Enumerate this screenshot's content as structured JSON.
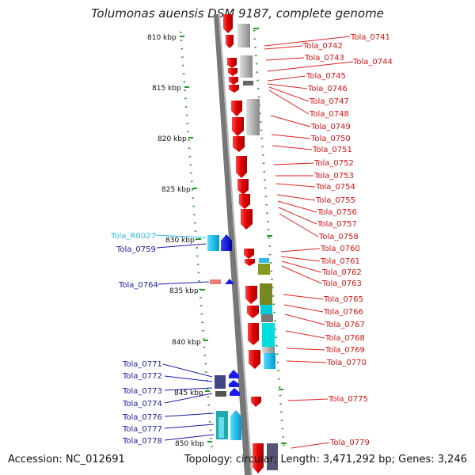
{
  "title": "Tolumonas auensis DSM 9187, complete genome",
  "accession": "Accession: NC_012691",
  "stats": "Topology: circular; Length: 3,471,292 bp; Genes: 3,246",
  "kbp_ticks": [
    {
      "label": "810 kbp",
      "kb": 810
    },
    {
      "label": "815 kbp",
      "kb": 815
    },
    {
      "label": "820 kbp",
      "kb": 820
    },
    {
      "label": "825 kbp",
      "kb": 825
    },
    {
      "label": "830 kbp",
      "kb": 830
    },
    {
      "label": "835 kbp",
      "kb": 835
    },
    {
      "label": "840 kbp",
      "kb": 840
    },
    {
      "label": "845 kbp",
      "kb": 845
    },
    {
      "label": "850 kbp",
      "kb": 850
    }
  ],
  "right_labels": [
    "Tola_0741",
    "Tola_0742",
    "Tola_0743",
    "Tola_0744",
    "Tola_0745",
    "Tola_0746",
    "Tola_0747",
    "Tola_0748",
    "Tola_0749",
    "Tola_0750",
    "Tola_0751",
    "Tola_0752",
    "Tola_0753",
    "Tola_0754",
    "Tola_0755",
    "Tola_0756",
    "Tola_0757",
    "Tola_0758",
    "Tola_0760",
    "Tola_0761",
    "Tola_0762",
    "Tola_0763",
    "Tola_0765",
    "Tola_0766",
    "Tola_0767",
    "Tola_0768",
    "Tola_0769",
    "Tola_0770",
    "Tola_0775",
    "Tola_0779"
  ],
  "left_labels": [
    {
      "text": "Tola_R0027",
      "color": "#33bbee"
    },
    {
      "text": "Tola_0759",
      "color": "#1a1aaa"
    },
    {
      "text": "Tola_0764",
      "color": "#1a1aaa"
    },
    {
      "text": "Tola_0771",
      "color": "#1a1aaa"
    },
    {
      "text": "Tola_0772",
      "color": "#1a1aaa"
    },
    {
      "text": "Tola_0773",
      "color": "#1a1aaa"
    },
    {
      "text": "Tola_0774",
      "color": "#1a1aaa"
    },
    {
      "text": "Tola_0776",
      "color": "#1a1aaa"
    },
    {
      "text": "Tola_0777",
      "color": "#1a1aaa"
    },
    {
      "text": "Tola_0778",
      "color": "#1a1aaa"
    }
  ],
  "colors": {
    "forward_strand": "#ee1111",
    "reverse_strand": "#1a1aee",
    "rna": "#33bbee",
    "backbone": "#888888",
    "tick": "#229922"
  }
}
